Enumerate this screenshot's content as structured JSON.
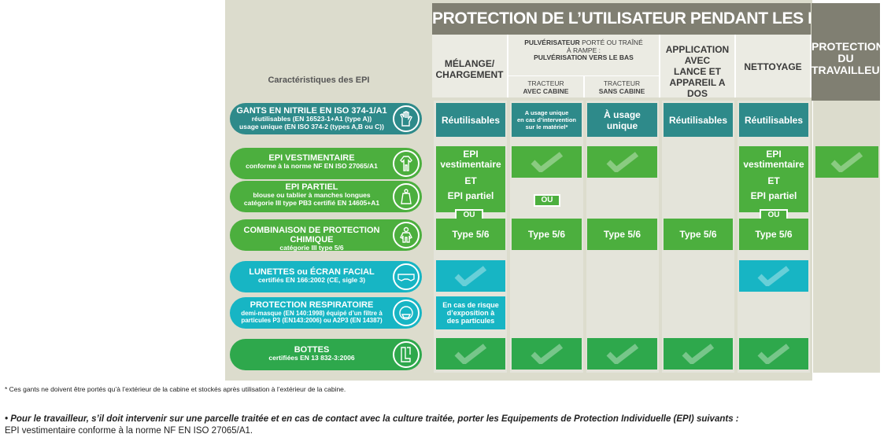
{
  "header": {
    "title": "PROTECTION DE L’UTILISATEUR PENDANT LES PHASES DE :",
    "caracteristiques": "Caractéristiques des EPI",
    "phases": {
      "melange": [
        "MÉLANGE/",
        "CHARGEMENT"
      ],
      "pulverisation_a": "PULVÉRISATEUR",
      "pulverisation_b": " PORTÉ OU TRAÎNÉ",
      "pulverisation_c": "À RAMPE :",
      "pulverisation_d": "PULVÉRISATION VERS LE BAS",
      "tracteur1_a": "TRACTEUR",
      "tracteur1_b": "AVEC CABINE",
      "tracteur2_a": "TRACTEUR",
      "tracteur2_b": "SANS CABINE",
      "application": [
        "APPLICATION",
        "AVEC",
        "LANCE ET",
        "APPAREIL A DOS"
      ],
      "nettoyage": "NETTOYAGE",
      "travailleur": [
        "PROTECTION",
        "DU",
        "TRAVAILLEUR"
      ]
    }
  },
  "epi": [
    {
      "title": "GANTS EN NITRILE EN ISO 374-1/A1",
      "lines": [
        "réutilisables (EN 16523-1+A1 (type A))",
        "usage unique (EN ISO 374-2 (types A,B ou C))"
      ],
      "icon": "gloves-icon"
    },
    {
      "title": "EPI VESTIMENTAIRE",
      "lines": [
        "conforme à la norme NF EN ISO 27065/A1"
      ],
      "icon": "coverall-icon"
    },
    {
      "title": "EPI PARTIEL",
      "lines": [
        "blouse ou tablier à manches longues",
        "catégorie III type PB3 certifié EN 14605+A1"
      ],
      "icon": "apron-icon"
    },
    {
      "title": "COMBINAISON DE PROTECTION CHIMIQUE",
      "lines": [
        "catégorie III type 5/6"
      ],
      "icon": "chemical-suit-icon"
    },
    {
      "title": "LUNETTES ou ÉCRAN FACIAL",
      "lines": [
        "certifiés EN 166:2002 (CE, sigle 3)"
      ],
      "icon": "goggles-icon"
    },
    {
      "title": "PROTECTION RESPIRATOIRE",
      "lines": [
        "demi-masque (EN 140:1998) équipé d’un filtre à",
        "particules P3 (EN143:2006) ou A2P3 (EN 14387)"
      ],
      "icon": "respirator-icon"
    },
    {
      "title": "BOTTES",
      "lines": [
        "certifiées EN 13 832-3:2006"
      ],
      "icon": "boots-icon"
    }
  ],
  "cells": {
    "reutilisables": "Réutilisables",
    "usage_unique_interv": [
      "A usage unique",
      "en cas d’intervention",
      "sur le matériel*"
    ],
    "usage_unique": "À usage unique",
    "epi_vest": [
      "EPI",
      "vestimentaire"
    ],
    "et": "ET",
    "epi_partiel": "EPI partiel",
    "ou": "OU",
    "type56": "Type 5/6",
    "risque": [
      "En cas de risque",
      "d’exposition à",
      "des particules"
    ]
  },
  "footnote": "* Ces gants ne doivent être portés qu’à l’extérieur de la cabine et stockés après utilisation à l’extérieur de la cabine.",
  "travailleur_note": "• Pour le travailleur, s’il doit intervenir sur une parcelle traitée et en cas de contact avec la culture traitée, porter les Equipements de Protection Individuelle (EPI) suivants :",
  "travailleur_epi": "EPI vestimentaire conforme à la norme NF EN ISO 27065/A1.",
  "colors": {
    "teal": "#2e8a8a",
    "green": "#4caf3e",
    "cyan": "#17b5c4",
    "header_dark": "#807f72"
  }
}
